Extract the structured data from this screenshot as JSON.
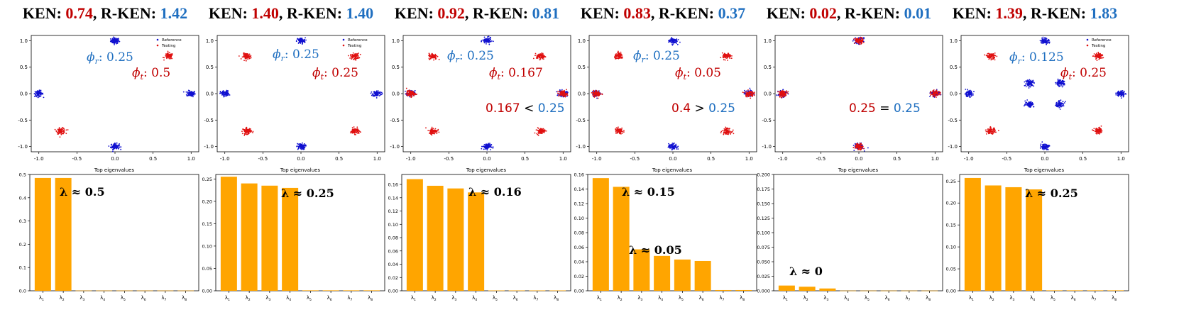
{
  "chart_data": [
    {
      "type": "scatter",
      "title": "KEN: 0.74, R-KEN: 1.42",
      "metrics": {
        "ken_label": "KEN: ",
        "ken": "0.74",
        "sep": ", R-KEN: ",
        "rken": "1.42"
      },
      "legend": [
        "Reference",
        "Testing"
      ],
      "xlim": [
        -1.1,
        1.1
      ],
      "ylim": [
        -1.1,
        1.1
      ],
      "xticks": [
        "-1.0",
        "-0.5",
        "0.0",
        "0.5",
        "1.0"
      ],
      "yticks": [
        "1.0",
        "0.5",
        "0.0",
        "-0.5",
        "-1.0"
      ],
      "reference_clusters": [
        [
          0,
          1
        ],
        [
          1,
          0
        ],
        [
          0,
          -1
        ],
        [
          -1,
          0
        ]
      ],
      "testing_clusters": [
        [
          0.707,
          0.707
        ],
        [
          -0.707,
          -0.707
        ]
      ],
      "annotations": {
        "phi_r": "0.25",
        "phi_t": "0.5",
        "compare": null
      }
    },
    {
      "type": "scatter",
      "title": "KEN: 1.40, R-KEN: 1.40",
      "metrics": {
        "ken_label": "KEN: ",
        "ken": "1.40",
        "sep": ", R-KEN: ",
        "rken": "1.40"
      },
      "legend": [
        "Reference",
        "Testing"
      ],
      "xlim": [
        -1.1,
        1.1
      ],
      "ylim": [
        -1.1,
        1.1
      ],
      "xticks": [
        "-1.0",
        "-0.5",
        "0.0",
        "0.5",
        "1.0"
      ],
      "yticks": [
        "1.0",
        "0.5",
        "0.0",
        "-0.5",
        "-1.0"
      ],
      "reference_clusters": [
        [
          0,
          1
        ],
        [
          1,
          0
        ],
        [
          0,
          -1
        ],
        [
          -1,
          0
        ]
      ],
      "testing_clusters": [
        [
          0.707,
          0.707
        ],
        [
          -0.707,
          0.707
        ],
        [
          -0.707,
          -0.707
        ],
        [
          0.707,
          -0.707
        ]
      ],
      "annotations": {
        "phi_r": "0.25",
        "phi_t": "0.25",
        "compare": null
      }
    },
    {
      "type": "scatter",
      "title": "KEN: 0.92, R-KEN: 0.81",
      "metrics": {
        "ken_label": "KEN: ",
        "ken": "0.92",
        "sep": ", R-KEN: ",
        "rken": "0.81"
      },
      "legend": [],
      "xlim": [
        -1.1,
        1.1
      ],
      "ylim": [
        -1.1,
        1.1
      ],
      "xticks": [
        "-1.0",
        "-0.5",
        "0.0",
        "0.5",
        "1.0"
      ],
      "yticks": [
        "1.0",
        "0.5",
        "0.0",
        "-0.5",
        "-1.0"
      ],
      "reference_clusters": [
        [
          0,
          1
        ],
        [
          1,
          0
        ],
        [
          0,
          -1
        ],
        [
          -1,
          0
        ]
      ],
      "testing_clusters": [
        [
          0.707,
          0.707
        ],
        [
          -0.707,
          0.707
        ],
        [
          -0.707,
          -0.707
        ],
        [
          0.707,
          -0.707
        ],
        [
          1,
          0
        ],
        [
          -1,
          0
        ]
      ],
      "annotations": {
        "phi_r": "0.25",
        "phi_t": "0.167",
        "compare": {
          "left": "0.167",
          "op": "<",
          "right": "0.25"
        }
      }
    },
    {
      "type": "scatter",
      "title": "KEN: 0.83, R-KEN: 0.37",
      "metrics": {
        "ken_label": "KEN: ",
        "ken": "0.83",
        "sep": ", R-KEN: ",
        "rken": "0.37"
      },
      "legend": [],
      "xlim": [
        -1.1,
        1.1
      ],
      "ylim": [
        -1.1,
        1.1
      ],
      "xticks": [
        "-1.0",
        "-0.5",
        "0.0",
        "0.5",
        "1.0"
      ],
      "yticks": [
        "1.0",
        "0.5",
        "0.0",
        "-0.5",
        "-1.0"
      ],
      "reference_clusters": [
        [
          0,
          1
        ],
        [
          1,
          0
        ],
        [
          0,
          -1
        ],
        [
          -1,
          0
        ]
      ],
      "testing_clusters": [
        [
          1,
          0
        ],
        [
          -1,
          0
        ],
        [
          0.707,
          0.707
        ],
        [
          -0.707,
          0.707
        ],
        [
          -0.707,
          -0.707
        ],
        [
          0.707,
          -0.707
        ]
      ],
      "annotations": {
        "phi_r": "0.25",
        "phi_t": "0.05",
        "compare": {
          "left": "0.4",
          "op": ">",
          "right": "0.25"
        }
      }
    },
    {
      "type": "scatter",
      "title": "KEN: 0.02, R-KEN: 0.01",
      "metrics": {
        "ken_label": "KEN: ",
        "ken": "0.02",
        "sep": ", R-KEN: ",
        "rken": "0.01"
      },
      "legend": [],
      "xlim": [
        -1.1,
        1.1
      ],
      "ylim": [
        -1.1,
        1.1
      ],
      "xticks": [
        "-1.0",
        "-0.5",
        "0.0",
        "0.5",
        "1.0"
      ],
      "yticks": [
        "1.0",
        "0.5",
        "0.0",
        "-0.5",
        "-1.0"
      ],
      "reference_clusters": [
        [
          0,
          1
        ],
        [
          1,
          0
        ],
        [
          0,
          -1
        ],
        [
          -1,
          0
        ]
      ],
      "testing_clusters": [
        [
          0,
          1
        ],
        [
          1,
          0
        ],
        [
          0,
          -1
        ],
        [
          -1,
          0
        ]
      ],
      "annotations": {
        "phi_r": null,
        "phi_t": null,
        "compare": {
          "left": "0.25",
          "op": "=",
          "right": "0.25"
        }
      }
    },
    {
      "type": "scatter",
      "title": "KEN: 1.39, R-KEN: 1.83",
      "metrics": {
        "ken_label": "KEN: ",
        "ken": "1.39",
        "sep": ", R-KEN: ",
        "rken": "1.83"
      },
      "legend": [
        "Reference",
        "Testing"
      ],
      "xlim": [
        -1.1,
        1.1
      ],
      "ylim": [
        -1.1,
        1.1
      ],
      "xticks": [
        "-1.0",
        "-0.5",
        "0.0",
        "0.5",
        "1.0"
      ],
      "yticks": [
        "1.0",
        "0.5",
        "0.0",
        "-0.5",
        "-1.0"
      ],
      "reference_clusters": [
        [
          0,
          1
        ],
        [
          1,
          0
        ],
        [
          0,
          -1
        ],
        [
          -1,
          0
        ],
        [
          0.2,
          0.2
        ],
        [
          -0.2,
          0.2
        ],
        [
          -0.2,
          -0.2
        ],
        [
          0.2,
          -0.2
        ]
      ],
      "testing_clusters": [
        [
          0.707,
          0.707
        ],
        [
          -0.707,
          0.707
        ],
        [
          -0.707,
          -0.707
        ],
        [
          0.707,
          -0.707
        ]
      ],
      "annotations": {
        "phi_r": "0.125",
        "phi_t": "0.25",
        "compare": null
      }
    },
    {
      "type": "bar",
      "title": "Top eigenvalues",
      "categories": [
        "λ1",
        "λ2",
        "λ3",
        "λ4",
        "λ5",
        "λ6",
        "λ7",
        "λ8"
      ],
      "values": [
        0.485,
        0.485,
        0.001,
        0.001,
        0.001,
        0.001,
        0.001,
        0.001
      ],
      "ylim": [
        0,
        0.5
      ],
      "yticks": [
        "0.0",
        "0.1",
        "0.2",
        "0.3",
        "0.4",
        "0.5"
      ],
      "annotations": [
        {
          "text": "λ ≈ 0.5"
        }
      ]
    },
    {
      "type": "bar",
      "title": "Top eigenvalues",
      "categories": [
        "λ1",
        "λ2",
        "λ3",
        "λ4",
        "λ5",
        "λ6",
        "λ7",
        "λ8"
      ],
      "values": [
        0.255,
        0.24,
        0.235,
        0.23,
        0.001,
        0.001,
        0.001,
        0.001
      ],
      "ylim": [
        0,
        0.26
      ],
      "yticks": [
        "0.00",
        "0.05",
        "0.10",
        "0.15",
        "0.20",
        "0.25"
      ],
      "annotations": [
        {
          "text": "λ ≈ 0.25"
        }
      ]
    },
    {
      "type": "bar",
      "title": "Top eigenvalues",
      "categories": [
        "λ1",
        "λ2",
        "λ3",
        "λ4",
        "λ5",
        "λ6",
        "λ7",
        "λ8"
      ],
      "values": [
        0.168,
        0.158,
        0.154,
        0.148,
        0.0005,
        0.0005,
        0.0005,
        0.0005
      ],
      "ylim": [
        0,
        0.175
      ],
      "yticks": [
        "0.00",
        "0.02",
        "0.04",
        "0.06",
        "0.08",
        "0.10",
        "0.12",
        "0.14",
        "0.16"
      ],
      "annotations": [
        {
          "text": "λ ≈ 0.16"
        }
      ]
    },
    {
      "type": "bar",
      "title": "Top eigenvalues",
      "categories": [
        "λ1",
        "λ2",
        "λ3",
        "λ4",
        "λ5",
        "λ6",
        "λ7",
        "λ8"
      ],
      "values": [
        0.155,
        0.143,
        0.057,
        0.048,
        0.043,
        0.041,
        0.001,
        0.001
      ],
      "ylim": [
        0,
        0.16
      ],
      "yticks": [
        "0.00",
        "0.02",
        "0.04",
        "0.06",
        "0.08",
        "0.10",
        "0.12",
        "0.14",
        "0.16"
      ],
      "annotations": [
        {
          "text": "λ ≈ 0.15"
        },
        {
          "text": "λ ≈ 0.05"
        }
      ]
    },
    {
      "type": "bar",
      "title": "Top eigenvalues",
      "categories": [
        "λ1",
        "λ2",
        "λ3",
        "λ4",
        "λ5",
        "λ6",
        "λ7",
        "λ8"
      ],
      "values": [
        0.009,
        0.007,
        0.004,
        0.0003,
        0.0003,
        0.0003,
        0.0003,
        0.0003
      ],
      "ylim": [
        0,
        0.2
      ],
      "yticks": [
        "0.000",
        "0.025",
        "0.050",
        "0.075",
        "0.100",
        "0.125",
        "0.150",
        "0.175",
        "0.200"
      ],
      "annotations": [
        {
          "text": "λ ≈ 0"
        }
      ]
    },
    {
      "type": "bar",
      "title": "Top eigenvalues",
      "categories": [
        "λ1",
        "λ2",
        "λ3",
        "λ4",
        "λ5",
        "λ6",
        "λ7",
        "λ8"
      ],
      "values": [
        0.257,
        0.24,
        0.236,
        0.231,
        0.001,
        0.001,
        0.001,
        0.001
      ],
      "ylim": [
        0,
        0.265
      ],
      "yticks": [
        "0.00",
        "0.05",
        "0.10",
        "0.15",
        "0.20",
        "0.25"
      ],
      "annotations": [
        {
          "text": "λ ≈ 0.25"
        }
      ]
    }
  ],
  "colors": {
    "reference": "#1010d0",
    "testing": "#e01010",
    "bar": "#ffa500",
    "ken_red": "#c00000",
    "rken_blue": "#1f6fc0",
    "axis": "#000000"
  }
}
